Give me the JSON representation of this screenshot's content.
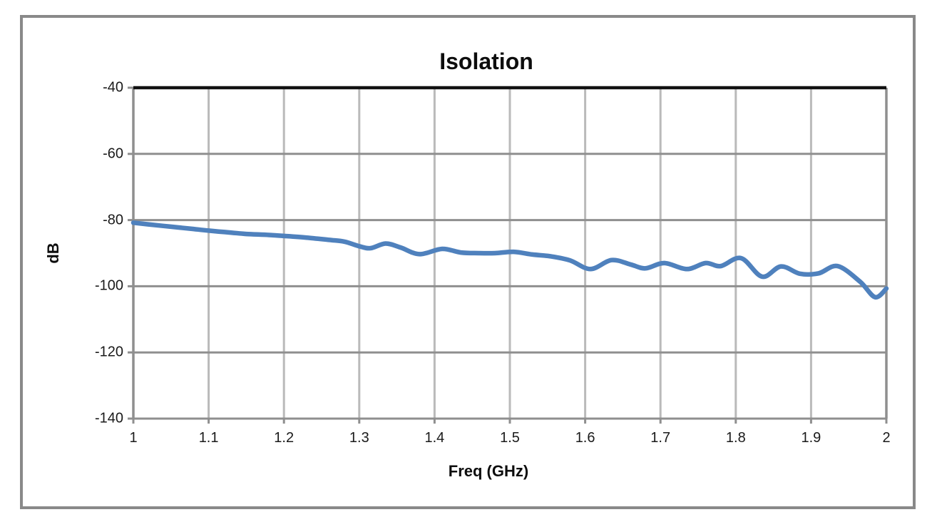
{
  "window": {
    "background": "#ffffff",
    "frame_border_color": "#898989"
  },
  "chart_data": {
    "type": "line",
    "title": "Isolation",
    "xlabel": "Freq (GHz)",
    "ylabel": "dB",
    "xlim": [
      1,
      2
    ],
    "ylim": [
      -140,
      -40
    ],
    "x_ticks": [
      1,
      1.1,
      1.2,
      1.3,
      1.4,
      1.5,
      1.6,
      1.7,
      1.8,
      1.9,
      2
    ],
    "x_tick_labels": [
      "1",
      "1.1",
      "1.2",
      "1.3",
      "1.4",
      "1.5",
      "1.6",
      "1.7",
      "1.8",
      "1.9",
      "2"
    ],
    "y_ticks": [
      -40,
      -60,
      -80,
      -100,
      -120,
      -140
    ],
    "y_tick_labels": [
      "-40",
      "-60",
      "-80",
      "-100",
      "-120",
      "-140"
    ],
    "grid": true,
    "legend_position": "none",
    "colors": {
      "series_line": "#4F81BD",
      "horizontal_gridline": "#8f8f8f",
      "vertical_gridline": "#bababa",
      "top_plot_border": "#111111",
      "axis_line": "#8f8f8f",
      "tick_text": "#1a1a1a"
    },
    "series": [
      {
        "name": "Isolation",
        "color": "#4F81BD",
        "smooth": true,
        "x": [
          1.0,
          1.02,
          1.05,
          1.08,
          1.1,
          1.13,
          1.15,
          1.18,
          1.2,
          1.23,
          1.26,
          1.28,
          1.3,
          1.315,
          1.335,
          1.355,
          1.38,
          1.41,
          1.435,
          1.46,
          1.48,
          1.505,
          1.53,
          1.555,
          1.58,
          1.607,
          1.635,
          1.66,
          1.68,
          1.705,
          1.735,
          1.76,
          1.78,
          1.807,
          1.835,
          1.86,
          1.885,
          1.91,
          1.935,
          1.965,
          1.985,
          2.0
        ],
        "y": [
          -80.8,
          -81.3,
          -82.0,
          -82.7,
          -83.2,
          -83.8,
          -84.2,
          -84.5,
          -84.8,
          -85.3,
          -86.0,
          -86.5,
          -87.9,
          -88.5,
          -87.1,
          -88.3,
          -90.3,
          -88.7,
          -89.8,
          -90.0,
          -90.0,
          -89.6,
          -90.4,
          -91.0,
          -92.2,
          -94.8,
          -92.1,
          -93.4,
          -94.6,
          -93.0,
          -94.8,
          -93.0,
          -93.9,
          -91.5,
          -97.1,
          -94.0,
          -96.2,
          -96.1,
          -93.9,
          -98.6,
          -103.3,
          -100.7
        ]
      }
    ]
  }
}
